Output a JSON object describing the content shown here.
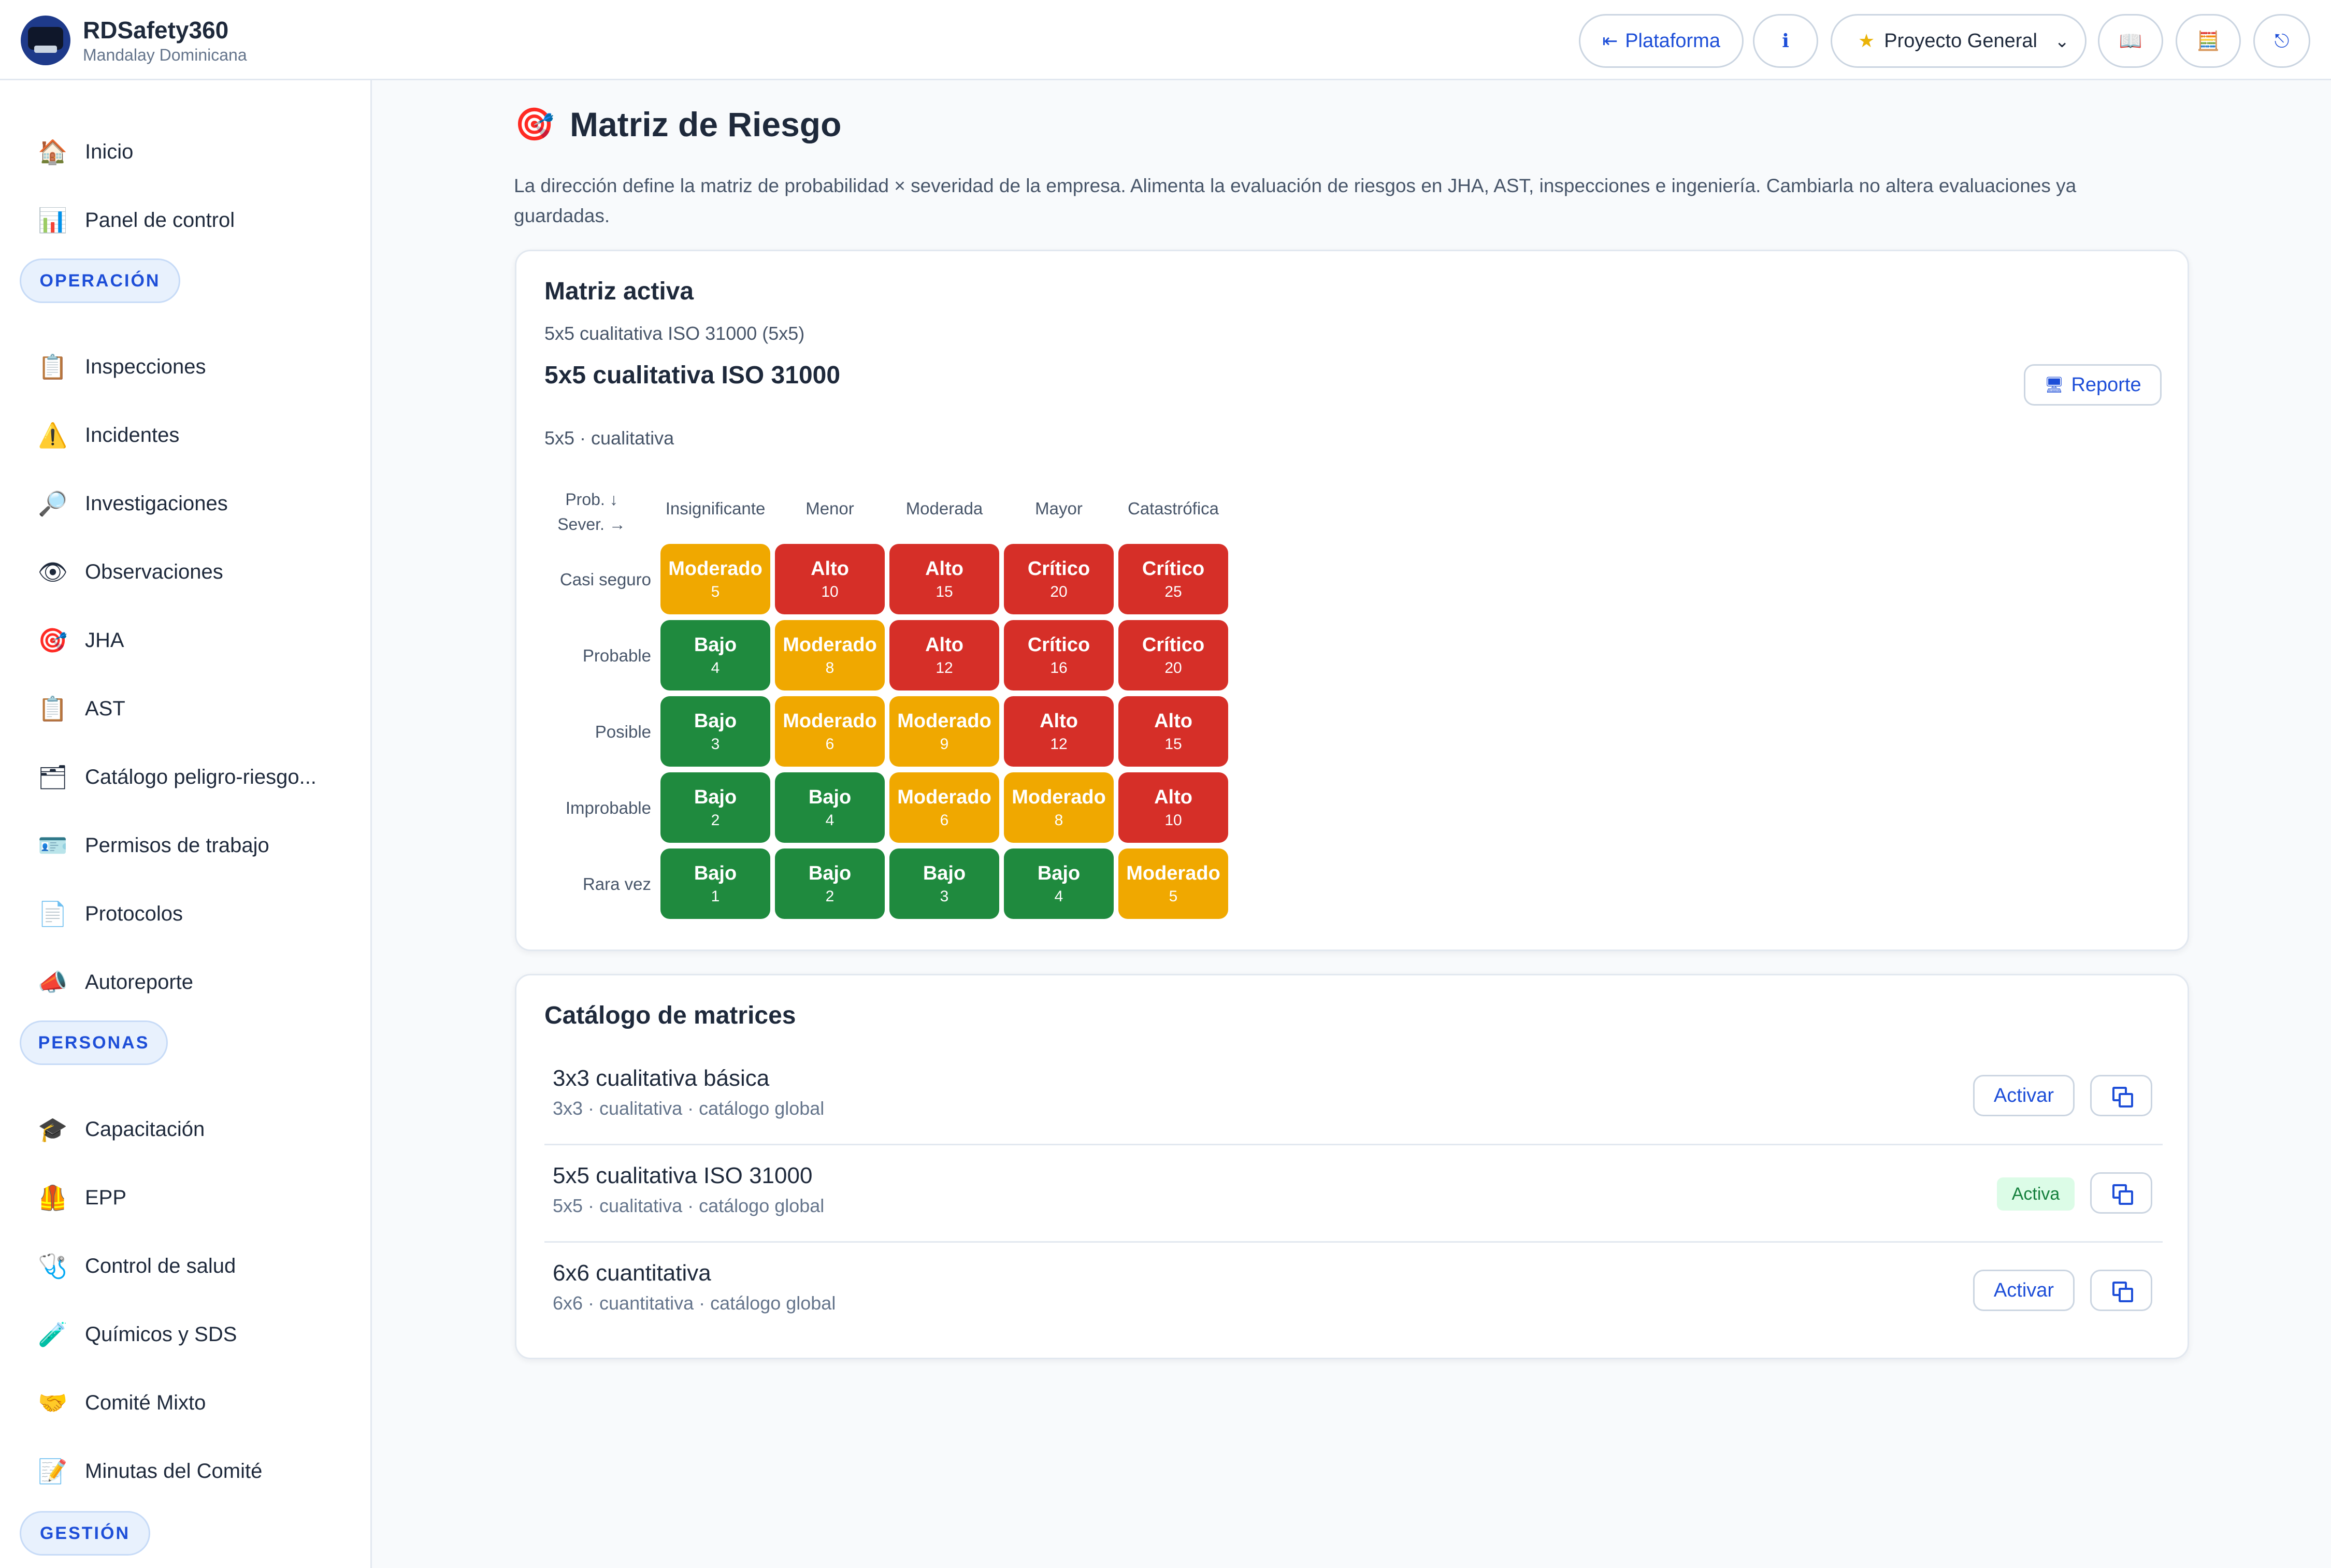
{
  "header": {
    "app_title": "RDSafety360",
    "subtitle": "Mandalay Dominicana",
    "platform_icon": "arrow-left-bar-icon",
    "platform_label": "Plataforma",
    "info_icon": "info-icon",
    "info_glyph": "ℹ",
    "project_icon": "star-icon",
    "project_label": "Proyecto General",
    "book_icon": "book-icon",
    "book_glyph": "📖",
    "calc_icon": "calculator-icon",
    "calc_glyph": "🧮",
    "exit_icon": "logout-icon",
    "exit_glyph": "⎋"
  },
  "sidebar": {
    "top_items": [
      {
        "label": "Inicio",
        "icon": "house-icon",
        "glyph": "🏠"
      },
      {
        "label": "Panel de control",
        "icon": "bar-chart-icon",
        "glyph": "📊"
      }
    ],
    "sections": [
      {
        "label": "OPERACIÓN",
        "items": [
          {
            "label": "Inspecciones",
            "icon": "clipboard-icon",
            "glyph": "📋"
          },
          {
            "label": "Incidentes",
            "icon": "warning-icon",
            "glyph": "⚠️"
          },
          {
            "label": "Investigaciones",
            "icon": "magnifier-icon",
            "glyph": "🔎"
          },
          {
            "label": "Observaciones",
            "icon": "eye-icon",
            "glyph": "👁"
          },
          {
            "label": "JHA",
            "icon": "target-icon",
            "glyph": "🎯"
          },
          {
            "label": "AST",
            "icon": "clipboard-icon",
            "glyph": "📋"
          },
          {
            "label": "Catálogo peligro-riesgo...",
            "icon": "folder-icon",
            "glyph": "🗂"
          },
          {
            "label": "Permisos de trabajo",
            "icon": "id-card-icon",
            "glyph": "🪪"
          },
          {
            "label": "Protocolos",
            "icon": "document-icon",
            "glyph": "📄"
          },
          {
            "label": "Autoreporte",
            "icon": "megaphone-icon",
            "glyph": "📣"
          }
        ]
      },
      {
        "label": "PERSONAS",
        "items": [
          {
            "label": "Capacitación",
            "icon": "graduation-cap-icon",
            "glyph": "🎓"
          },
          {
            "label": "EPP",
            "icon": "safety-vest-icon",
            "glyph": "🦺"
          },
          {
            "label": "Control de salud",
            "icon": "stethoscope-icon",
            "glyph": "🩺"
          },
          {
            "label": "Químicos y SDS",
            "icon": "test-tube-icon",
            "glyph": "🧪"
          },
          {
            "label": "Comité Mixto",
            "icon": "handshake-icon",
            "glyph": "🤝"
          },
          {
            "label": "Minutas del Comité",
            "icon": "memo-icon",
            "glyph": "📝"
          }
        ]
      },
      {
        "label": "GESTIÓN",
        "items": []
      }
    ]
  },
  "main": {
    "title": "Matriz de Riesgo",
    "title_icon": "target-icon",
    "title_glyph": "🎯",
    "description": "La dirección define la matriz de probabilidad × severidad de la empresa. Alimenta la evaluación de riesgos en JHA, AST, inspecciones e ingeniería. Cambiarla no altera evaluaciones ya guardadas.",
    "active_card": {
      "heading": "Matriz activa",
      "subtitle": "5x5 cualitativa ISO 31000 (5x5)",
      "name": "5x5 cualitativa ISO 31000",
      "type": "5x5 · cualitativa",
      "report_icon": "monitor-icon",
      "report_glyph": "🖥",
      "report_label": "Reporte",
      "matrix": {
        "axis_prob": "Prob. ↓",
        "axis_sev": "Sever. →",
        "columns": [
          "Insignificante",
          "Menor",
          "Moderada",
          "Mayor",
          "Catastrófica"
        ],
        "rows": [
          {
            "label": "Casi seguro",
            "cells": [
              {
                "level": "Moderado",
                "score": "5",
                "class": "mod"
              },
              {
                "level": "Alto",
                "score": "10",
                "class": "alto"
              },
              {
                "level": "Alto",
                "score": "15",
                "class": "alto"
              },
              {
                "level": "Crítico",
                "score": "20",
                "class": "crit"
              },
              {
                "level": "Crítico",
                "score": "25",
                "class": "crit"
              }
            ]
          },
          {
            "label": "Probable",
            "cells": [
              {
                "level": "Bajo",
                "score": "4",
                "class": "bajo"
              },
              {
                "level": "Moderado",
                "score": "8",
                "class": "mod"
              },
              {
                "level": "Alto",
                "score": "12",
                "class": "alto"
              },
              {
                "level": "Crítico",
                "score": "16",
                "class": "crit"
              },
              {
                "level": "Crítico",
                "score": "20",
                "class": "crit"
              }
            ]
          },
          {
            "label": "Posible",
            "cells": [
              {
                "level": "Bajo",
                "score": "3",
                "class": "bajo"
              },
              {
                "level": "Moderado",
                "score": "6",
                "class": "mod"
              },
              {
                "level": "Moderado",
                "score": "9",
                "class": "mod"
              },
              {
                "level": "Alto",
                "score": "12",
                "class": "alto"
              },
              {
                "level": "Alto",
                "score": "15",
                "class": "alto"
              }
            ]
          },
          {
            "label": "Improbable",
            "cells": [
              {
                "level": "Bajo",
                "score": "2",
                "class": "bajo"
              },
              {
                "level": "Bajo",
                "score": "4",
                "class": "bajo"
              },
              {
                "level": "Moderado",
                "score": "6",
                "class": "mod"
              },
              {
                "level": "Moderado",
                "score": "8",
                "class": "mod"
              },
              {
                "level": "Alto",
                "score": "10",
                "class": "alto"
              }
            ]
          },
          {
            "label": "Rara vez",
            "cells": [
              {
                "level": "Bajo",
                "score": "1",
                "class": "bajo"
              },
              {
                "level": "Bajo",
                "score": "2",
                "class": "bajo"
              },
              {
                "level": "Bajo",
                "score": "3",
                "class": "bajo"
              },
              {
                "level": "Bajo",
                "score": "4",
                "class": "bajo"
              },
              {
                "level": "Moderado",
                "score": "5",
                "class": "mod"
              }
            ]
          }
        ]
      }
    },
    "catalog_card": {
      "heading": "Catálogo de matrices",
      "copy_icon": "duplicate-icon",
      "items": [
        {
          "name": "3x3 cualitativa básica",
          "meta": "3x3 · cualitativa · catálogo global",
          "action": "Activar",
          "active": false
        },
        {
          "name": "5x5 cualitativa ISO 31000",
          "meta": "5x5 · cualitativa · catálogo global",
          "action": "Activa",
          "active": true
        },
        {
          "name": "6x6 cuantitativa",
          "meta": "6x6 · cuantitativa · catálogo global",
          "action": "Activar",
          "active": false
        }
      ]
    }
  },
  "colors": {
    "accent": "#1d4ed8",
    "bajo": "#1f8a3e",
    "moderado": "#f0a800",
    "alto": "#d62f28",
    "critico": "#d62f28",
    "active_badge_bg": "#dcfce7",
    "active_badge_text": "#15803d"
  }
}
